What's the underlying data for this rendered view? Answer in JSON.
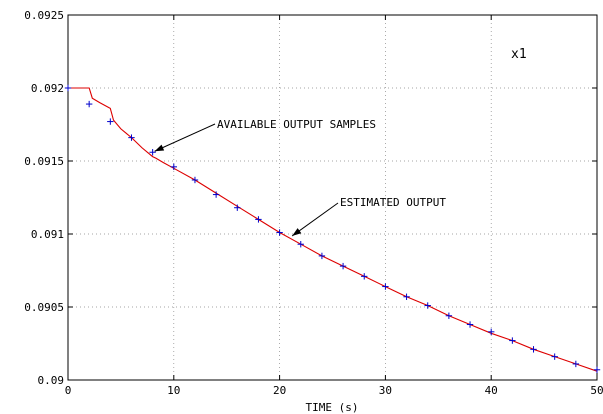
{
  "chart_data": {
    "type": "line",
    "title": "x1",
    "xlabel": "TIME (s)",
    "ylabel": "",
    "xlim": [
      0,
      50
    ],
    "ylim": [
      0.09,
      0.0925
    ],
    "grid": true,
    "x_ticks": [
      0,
      10,
      20,
      30,
      40,
      50
    ],
    "x_tick_labels": [
      "0",
      "10",
      "20",
      "30",
      "40",
      "50"
    ],
    "y_ticks": [
      0.09,
      0.0905,
      0.091,
      0.0915,
      0.092,
      0.0925
    ],
    "y_tick_labels": [
      "0.09",
      "0.0905",
      "0.091",
      "0.0915",
      "0.092",
      "0.0925"
    ],
    "series": [
      {
        "style": "line",
        "color": "#dd0000",
        "x": [
          0,
          2,
          2.3,
          3,
          4,
          4.3,
          5,
          6,
          7,
          8,
          8.3,
          9,
          10,
          12,
          14,
          16,
          18,
          20,
          22,
          24,
          26,
          28,
          30,
          32,
          34,
          36,
          38,
          40,
          42,
          44,
          46,
          48,
          50
        ],
        "y": [
          0.092,
          0.092,
          0.09193,
          0.0919,
          0.09186,
          0.09178,
          0.09172,
          0.09166,
          0.09159,
          0.09153,
          0.09152,
          0.09149,
          0.09145,
          0.09137,
          0.09128,
          0.09119,
          0.0911,
          0.09101,
          0.09093,
          0.09085,
          0.09078,
          0.09071,
          0.09064,
          0.09057,
          0.09051,
          0.09044,
          0.09038,
          0.09032,
          0.09027,
          0.09021,
          0.09016,
          0.09011,
          0.09006
        ]
      },
      {
        "style": "markers",
        "marker": "+",
        "color": "#0000cc",
        "x": [
          0,
          2,
          4,
          6,
          8,
          10,
          12,
          14,
          16,
          18,
          20,
          22,
          24,
          26,
          28,
          30,
          32,
          34,
          36,
          38,
          40,
          42,
          44,
          46,
          48,
          50
        ],
        "y": [
          0.092,
          0.09189,
          0.09177,
          0.09166,
          0.09156,
          0.09146,
          0.09137,
          0.09127,
          0.09118,
          0.0911,
          0.09101,
          0.09093,
          0.09085,
          0.09078,
          0.09071,
          0.09064,
          0.09057,
          0.09051,
          0.09044,
          0.09038,
          0.09033,
          0.09027,
          0.09021,
          0.09016,
          0.09011,
          0.09007
        ]
      }
    ],
    "annotations": [
      {
        "text": "AVAILABLE OUTPUT SAMPLES",
        "x": 8,
        "y": 0.09156
      },
      {
        "text": "ESTIMATED OUTPUT",
        "x": 21,
        "y": 0.09098
      }
    ]
  }
}
